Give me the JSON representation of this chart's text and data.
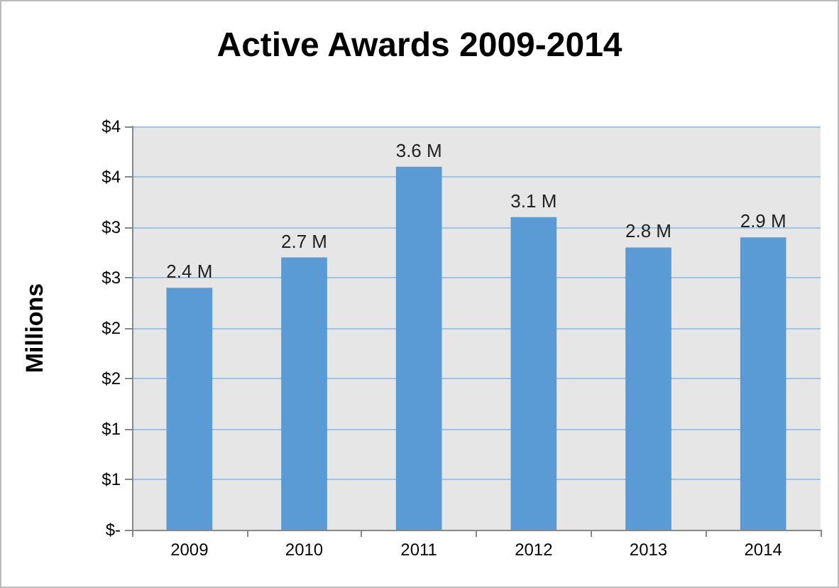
{
  "chart_data": {
    "type": "bar",
    "title": "Active Awards 2009-2014",
    "ylabel": "Millions",
    "categories": [
      "2009",
      "2010",
      "2011",
      "2012",
      "2013",
      "2014"
    ],
    "values": [
      2.4,
      2.7,
      3.6,
      3.1,
      2.8,
      2.9
    ],
    "value_labels": [
      "2.4 M",
      "2.7 M",
      "3.6 M",
      "3.1 M",
      "2.8 M",
      "2.9 M"
    ],
    "color": "#5b9bd5",
    "ylim": [
      0,
      4
    ],
    "yticks": [
      {
        "value": 0,
        "label": "$-"
      },
      {
        "value": 0.5,
        "label": "$1"
      },
      {
        "value": 1,
        "label": "$1"
      },
      {
        "value": 1.5,
        "label": "$2"
      },
      {
        "value": 2,
        "label": "$2"
      },
      {
        "value": 2.5,
        "label": "$3"
      },
      {
        "value": 3,
        "label": "$3"
      },
      {
        "value": 3.5,
        "label": "$4"
      },
      {
        "value": 4,
        "label": "$4"
      }
    ],
    "grid": "y"
  }
}
